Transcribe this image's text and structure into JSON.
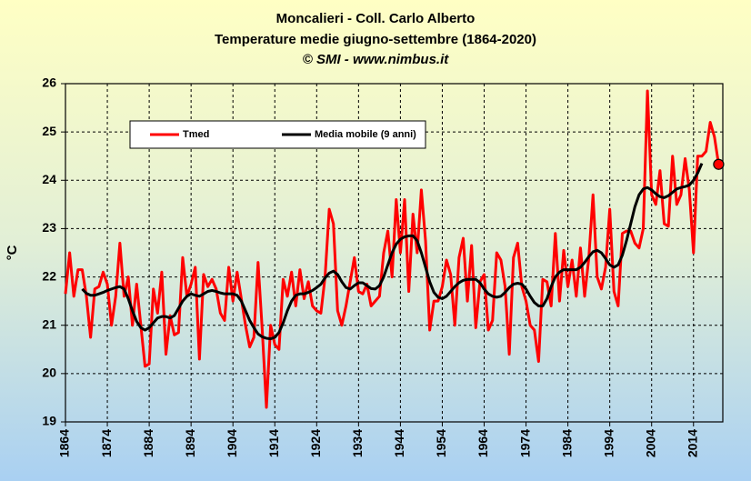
{
  "chart_data": {
    "type": "line",
    "title": "Moncalieri - Coll. Carlo Alberto",
    "subtitle": "Temperature medie giugno-settembre (1864-2020)",
    "credit": "© SMI - www.nimbus.it",
    "y_label": "°C",
    "x": [
      1864,
      1865,
      1866,
      1867,
      1868,
      1869,
      1870,
      1871,
      1872,
      1873,
      1874,
      1875,
      1876,
      1877,
      1878,
      1879,
      1880,
      1881,
      1882,
      1883,
      1884,
      1885,
      1886,
      1887,
      1888,
      1889,
      1890,
      1891,
      1892,
      1893,
      1894,
      1895,
      1896,
      1897,
      1898,
      1899,
      1900,
      1901,
      1902,
      1903,
      1904,
      1905,
      1906,
      1907,
      1908,
      1909,
      1910,
      1911,
      1912,
      1913,
      1914,
      1915,
      1916,
      1917,
      1918,
      1919,
      1920,
      1921,
      1922,
      1923,
      1924,
      1925,
      1926,
      1927,
      1928,
      1929,
      1930,
      1931,
      1932,
      1933,
      1934,
      1935,
      1936,
      1937,
      1938,
      1939,
      1940,
      1941,
      1942,
      1943,
      1944,
      1945,
      1946,
      1947,
      1948,
      1949,
      1950,
      1951,
      1952,
      1953,
      1954,
      1955,
      1956,
      1957,
      1958,
      1959,
      1960,
      1961,
      1962,
      1963,
      1964,
      1965,
      1966,
      1967,
      1968,
      1969,
      1970,
      1971,
      1972,
      1973,
      1974,
      1975,
      1976,
      1977,
      1978,
      1979,
      1980,
      1981,
      1982,
      1983,
      1984,
      1985,
      1986,
      1987,
      1988,
      1989,
      1990,
      1991,
      1992,
      1993,
      1994,
      1995,
      1996,
      1997,
      1998,
      1999,
      2000,
      2001,
      2002,
      2003,
      2004,
      2005,
      2006,
      2007,
      2008,
      2009,
      2010,
      2011,
      2012,
      2013,
      2014,
      2015,
      2016,
      2017,
      2018,
      2019,
      2020
    ],
    "series": [
      {
        "name": "Tmed",
        "color": "#ff0000",
        "width": 3,
        "end_marker": true,
        "values": [
          21.65,
          22.5,
          21.6,
          22.15,
          22.15,
          21.6,
          20.75,
          21.75,
          21.8,
          22.1,
          21.85,
          21.0,
          21.6,
          22.7,
          21.6,
          22.0,
          21.0,
          21.85,
          21.0,
          20.15,
          20.2,
          21.75,
          21.25,
          22.1,
          20.4,
          21.2,
          20.8,
          20.85,
          22.4,
          21.6,
          21.85,
          22.2,
          20.3,
          22.05,
          21.8,
          21.95,
          21.75,
          21.25,
          21.1,
          22.2,
          21.5,
          22.1,
          21.55,
          21.0,
          20.55,
          20.75,
          22.3,
          20.9,
          19.3,
          21.0,
          20.6,
          20.5,
          21.95,
          21.6,
          22.1,
          21.4,
          22.15,
          21.55,
          21.9,
          21.4,
          21.3,
          21.25,
          22.0,
          23.4,
          23.1,
          21.3,
          21.0,
          21.4,
          21.9,
          22.4,
          21.7,
          21.65,
          21.85,
          21.4,
          21.5,
          21.6,
          22.5,
          22.95,
          22.0,
          23.6,
          22.5,
          23.6,
          21.7,
          23.3,
          22.5,
          23.8,
          22.75,
          20.9,
          21.5,
          21.5,
          21.8,
          22.35,
          22.05,
          21.0,
          22.4,
          22.8,
          21.5,
          22.65,
          20.95,
          21.9,
          22.05,
          20.9,
          21.1,
          22.5,
          22.35,
          21.8,
          20.4,
          22.4,
          22.7,
          21.8,
          21.5,
          21.0,
          20.9,
          20.25,
          21.95,
          21.9,
          21.4,
          22.9,
          21.5,
          22.55,
          21.8,
          22.35,
          21.6,
          22.6,
          21.6,
          22.4,
          23.7,
          22.0,
          21.75,
          22.2,
          23.4,
          21.7,
          21.4,
          22.9,
          22.95,
          22.95,
          22.7,
          22.6,
          23.0,
          25.85,
          23.7,
          23.5,
          24.2,
          23.1,
          23.05,
          24.5,
          23.5,
          23.7,
          24.45,
          23.8,
          22.5,
          24.5,
          24.5,
          24.6,
          25.2,
          24.9,
          24.33
        ]
      },
      {
        "name": "Media mobile (9 anni)",
        "color": "#000000",
        "width": 3,
        "values": [
          null,
          null,
          null,
          null,
          21.75,
          21.66,
          21.62,
          21.62,
          21.65,
          21.68,
          21.72,
          21.75,
          21.78,
          21.8,
          21.75,
          21.55,
          21.3,
          21.08,
          20.95,
          20.9,
          20.95,
          21.05,
          21.15,
          21.18,
          21.18,
          21.15,
          21.2,
          21.35,
          21.5,
          21.6,
          21.65,
          21.62,
          21.6,
          21.65,
          21.7,
          21.72,
          21.7,
          21.67,
          21.65,
          21.65,
          21.65,
          21.62,
          21.5,
          21.3,
          21.1,
          20.95,
          20.82,
          20.76,
          20.73,
          20.72,
          20.75,
          20.85,
          21.05,
          21.3,
          21.5,
          21.62,
          21.65,
          21.65,
          21.68,
          21.72,
          21.78,
          21.85,
          21.98,
          22.08,
          22.12,
          22.05,
          21.9,
          21.78,
          21.75,
          21.82,
          21.88,
          21.88,
          21.82,
          21.76,
          21.75,
          21.82,
          22.0,
          22.25,
          22.5,
          22.68,
          22.78,
          22.83,
          22.85,
          22.85,
          22.75,
          22.5,
          22.2,
          21.9,
          21.68,
          21.58,
          21.55,
          21.6,
          21.7,
          21.8,
          21.88,
          21.93,
          21.95,
          21.95,
          21.95,
          21.88,
          21.75,
          21.65,
          21.6,
          21.58,
          21.6,
          21.68,
          21.78,
          21.85,
          21.87,
          21.85,
          21.75,
          21.6,
          21.47,
          21.4,
          21.4,
          21.55,
          21.8,
          22.0,
          22.1,
          22.15,
          22.15,
          22.15,
          22.15,
          22.2,
          22.3,
          22.42,
          22.52,
          22.55,
          22.5,
          22.38,
          22.25,
          22.2,
          22.25,
          22.45,
          22.75,
          23.1,
          23.45,
          23.7,
          23.82,
          23.85,
          23.8,
          23.72,
          23.66,
          23.64,
          23.68,
          23.75,
          23.82,
          23.85,
          23.87,
          23.9,
          24.0,
          24.15,
          24.35,
          null,
          null,
          null,
          null
        ]
      }
    ],
    "xlim": [
      1864,
      2021
    ],
    "xticks": [
      1864,
      1874,
      1884,
      1894,
      1904,
      1914,
      1924,
      1934,
      1944,
      1954,
      1964,
      1974,
      1984,
      1994,
      2004,
      2014
    ],
    "ylim": [
      19,
      26
    ],
    "yticks": [
      19,
      20,
      21,
      22,
      23,
      24,
      25,
      26
    ],
    "grid": true,
    "legend": "top-left"
  }
}
